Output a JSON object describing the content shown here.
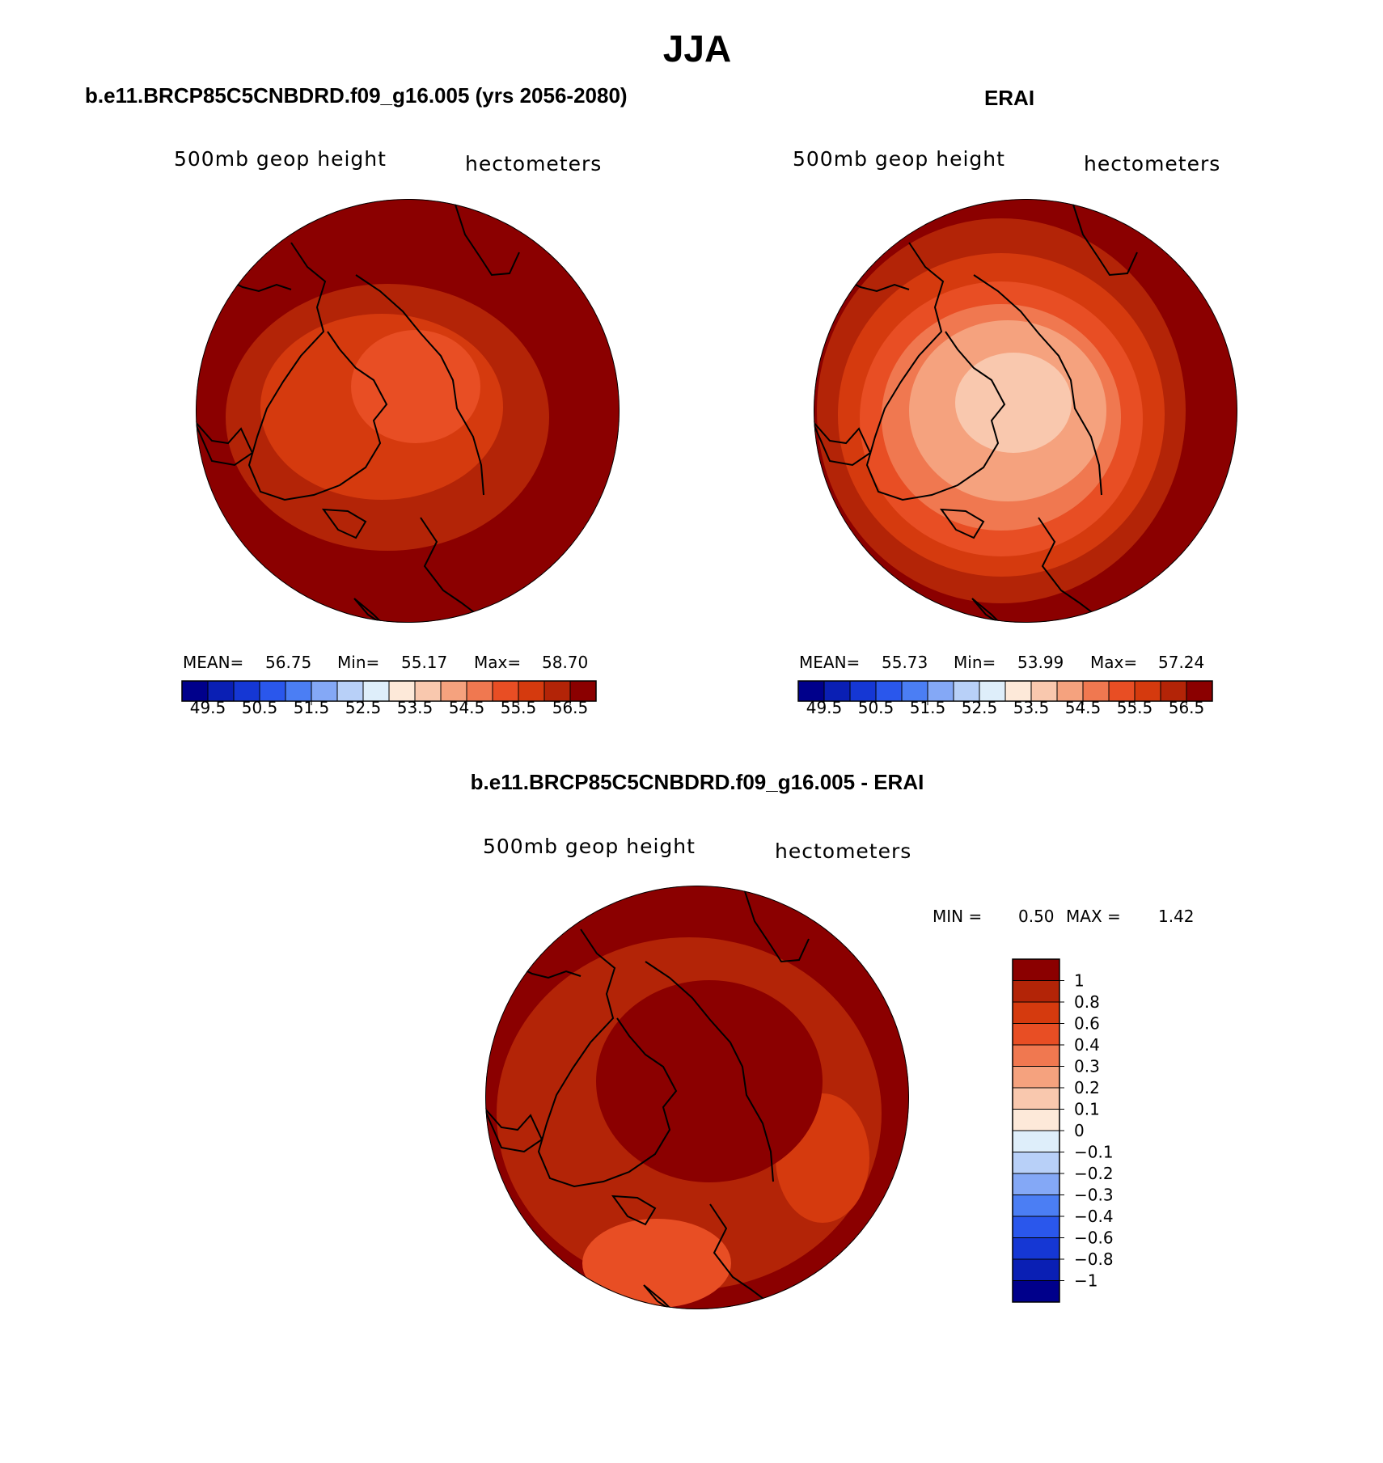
{
  "chart_data": {
    "type": "polar-contour-map",
    "season": "JJA",
    "palette": [
      "#00008b",
      "#0a1fb4",
      "#1537d4",
      "#2a57ec",
      "#4b7ef4",
      "#84a8f6",
      "#b8d0f8",
      "#deeefa",
      "#fde9d9",
      "#f9c8ae",
      "#f5a27e",
      "#f07850",
      "#e84e24",
      "#d53a0e",
      "#b32407",
      "#8b0000"
    ],
    "panels": [
      {
        "id": "model",
        "title": "b.e11.BRCP85C5CNBDRD.f09_g16.005 (yrs 2056-2080)",
        "variable": "500mb geop height",
        "units": "hectometers",
        "stats": {
          "mean_label": "MEAN=",
          "mean": "56.75",
          "min_label": "Min=",
          "min": "55.17",
          "max_label": "Max=",
          "max": "58.70"
        },
        "colorbar_labels": [
          "49.5",
          "50.5",
          "51.5",
          "52.5",
          "53.5",
          "54.5",
          "55.5",
          "56.5"
        ],
        "bands": [
          15,
          14,
          13,
          12
        ]
      },
      {
        "id": "obs",
        "title": "ERAI",
        "variable": "500mb geop height",
        "units": "hectometers",
        "stats": {
          "mean_label": "MEAN=",
          "mean": "55.73",
          "min_label": "Min=",
          "min": "53.99",
          "max_label": "Max=",
          "max": "57.24"
        },
        "colorbar_labels": [
          "49.5",
          "50.5",
          "51.5",
          "52.5",
          "53.5",
          "54.5",
          "55.5",
          "56.5"
        ],
        "bands": [
          15,
          14,
          13,
          12,
          11,
          10,
          9
        ]
      },
      {
        "id": "diff",
        "title": "b.e11.BRCP85C5CNBDRD.f09_g16.005 - ERAI",
        "variable": "500mb geop height",
        "units": "hectometers",
        "stats": {
          "min_label": "MIN =",
          "min": "0.50",
          "max_label": "MAX =",
          "max": "1.42"
        },
        "colorbar_labels": [
          "1",
          "0.8",
          "0.6",
          "0.4",
          "0.3",
          "0.2",
          "0.1",
          "0",
          "−0.1",
          "−0.2",
          "−0.3",
          "−0.4",
          "−0.6",
          "−0.8",
          "−1"
        ],
        "bands": [
          15,
          14,
          13,
          12
        ]
      }
    ]
  }
}
